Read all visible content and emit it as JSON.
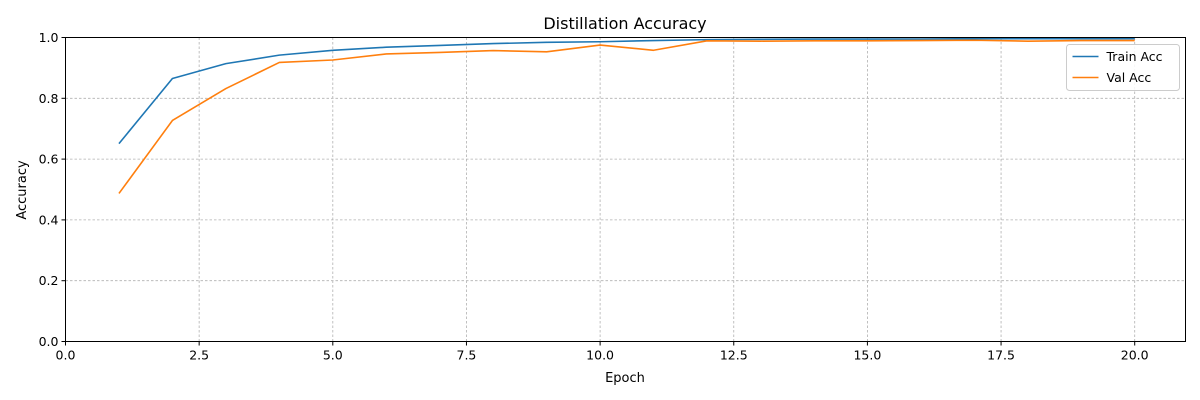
{
  "chart_data": {
    "type": "line",
    "title": "Distillation Accuracy",
    "xlabel": "Epoch",
    "ylabel": "Accuracy",
    "xlim": [
      0,
      20.95
    ],
    "ylim": [
      0,
      1.0
    ],
    "xticks": [
      0,
      2.5,
      5,
      7.5,
      10,
      12.5,
      15,
      17.5,
      20
    ],
    "xtick_labels": [
      "0.0",
      "2.5",
      "5.0",
      "7.5",
      "10.0",
      "12.5",
      "15.0",
      "17.5",
      "20.0"
    ],
    "yticks": [
      0,
      0.2,
      0.4,
      0.6,
      0.8,
      1.0
    ],
    "ytick_labels": [
      "0.0",
      "0.2",
      "0.4",
      "0.6",
      "0.8",
      "1.0"
    ],
    "grid": true,
    "legend_position": "top-right",
    "x": [
      1,
      2,
      3,
      4,
      5,
      6,
      7,
      8,
      9,
      10,
      11,
      12,
      13,
      14,
      15,
      16,
      17,
      18,
      19,
      20
    ],
    "series": [
      {
        "name": "Train Acc",
        "color": "#1f77b4",
        "values": [
          0.651,
          0.865,
          0.914,
          0.942,
          0.958,
          0.968,
          0.974,
          0.98,
          0.984,
          0.986,
          0.99,
          0.993,
          0.994,
          0.995,
          0.995,
          0.995,
          0.996,
          0.996,
          0.996,
          0.996
        ]
      },
      {
        "name": "Val Acc",
        "color": "#ff7f0e",
        "values": [
          0.487,
          0.727,
          0.832,
          0.918,
          0.926,
          0.946,
          0.951,
          0.957,
          0.953,
          0.975,
          0.958,
          0.989,
          0.988,
          0.989,
          0.989,
          0.99,
          0.991,
          0.988,
          0.99,
          0.99
        ]
      }
    ]
  }
}
